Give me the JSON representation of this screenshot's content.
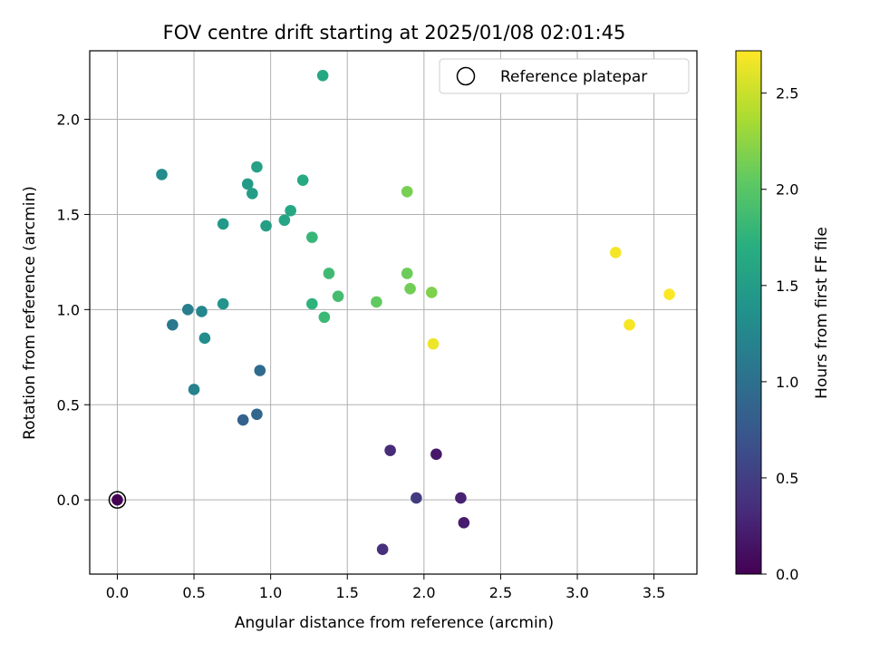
{
  "chart_data": {
    "type": "scatter",
    "title": "FOV centre drift starting at 2025/01/08 02:01:45",
    "xlabel": "Angular distance from reference (arcmin)",
    "ylabel": "Rotation from reference (arcmin)",
    "xlim": [
      -0.18,
      3.78
    ],
    "ylim": [
      -0.39,
      2.36
    ],
    "xticks": [
      "0.0",
      "0.5",
      "1.0",
      "1.5",
      "2.0",
      "2.5",
      "3.0",
      "3.5"
    ],
    "yticks": [
      "0.0",
      "0.5",
      "1.0",
      "1.5",
      "2.0"
    ],
    "grid": true,
    "legend": {
      "position": "top-right",
      "entries": [
        "Reference platepar"
      ]
    },
    "reference_point": {
      "x": 0.0,
      "y": 0.0
    },
    "colorbar": {
      "label": "Hours from first FF file",
      "colormap": "viridis",
      "range": [
        0.0,
        2.72
      ],
      "ticks": [
        "0.0",
        "0.5",
        "1.0",
        "1.5",
        "2.0",
        "2.5"
      ]
    },
    "points": [
      {
        "x": 0.0,
        "y": 0.0,
        "c": 0.0
      },
      {
        "x": 2.08,
        "y": 0.24,
        "c": 0.18
      },
      {
        "x": 2.26,
        "y": -0.12,
        "c": 0.22
      },
      {
        "x": 2.24,
        "y": 0.01,
        "c": 0.26
      },
      {
        "x": 1.78,
        "y": 0.26,
        "c": 0.33
      },
      {
        "x": 1.73,
        "y": -0.26,
        "c": 0.37
      },
      {
        "x": 1.95,
        "y": 0.01,
        "c": 0.47
      },
      {
        "x": 0.82,
        "y": 0.42,
        "c": 0.85
      },
      {
        "x": 0.91,
        "y": 0.45,
        "c": 0.9
      },
      {
        "x": 0.93,
        "y": 0.68,
        "c": 0.95
      },
      {
        "x": 0.36,
        "y": 0.92,
        "c": 1.1
      },
      {
        "x": 0.46,
        "y": 1.0,
        "c": 1.15
      },
      {
        "x": 0.5,
        "y": 0.58,
        "c": 1.2
      },
      {
        "x": 0.55,
        "y": 0.99,
        "c": 1.25
      },
      {
        "x": 0.57,
        "y": 0.85,
        "c": 1.3
      },
      {
        "x": 0.29,
        "y": 1.71,
        "c": 1.3
      },
      {
        "x": 0.69,
        "y": 1.03,
        "c": 1.4
      },
      {
        "x": 0.69,
        "y": 1.45,
        "c": 1.45
      },
      {
        "x": 0.85,
        "y": 1.66,
        "c": 1.48
      },
      {
        "x": 0.88,
        "y": 1.61,
        "c": 1.5
      },
      {
        "x": 0.97,
        "y": 1.44,
        "c": 1.52
      },
      {
        "x": 0.91,
        "y": 1.75,
        "c": 1.55
      },
      {
        "x": 1.09,
        "y": 1.47,
        "c": 1.6
      },
      {
        "x": 1.13,
        "y": 1.52,
        "c": 1.62
      },
      {
        "x": 1.21,
        "y": 1.68,
        "c": 1.65
      },
      {
        "x": 1.34,
        "y": 2.23,
        "c": 1.62
      },
      {
        "x": 1.27,
        "y": 1.03,
        "c": 1.75
      },
      {
        "x": 1.27,
        "y": 1.38,
        "c": 1.8
      },
      {
        "x": 1.35,
        "y": 0.96,
        "c": 1.82
      },
      {
        "x": 1.38,
        "y": 1.19,
        "c": 1.85
      },
      {
        "x": 1.44,
        "y": 1.07,
        "c": 1.88
      },
      {
        "x": 1.69,
        "y": 1.04,
        "c": 2.05
      },
      {
        "x": 1.89,
        "y": 1.19,
        "c": 2.1
      },
      {
        "x": 1.91,
        "y": 1.11,
        "c": 2.12
      },
      {
        "x": 2.05,
        "y": 1.09,
        "c": 2.18
      },
      {
        "x": 1.89,
        "y": 1.62,
        "c": 2.15
      },
      {
        "x": 2.06,
        "y": 0.82,
        "c": 2.65
      },
      {
        "x": 3.25,
        "y": 1.3,
        "c": 2.68
      },
      {
        "x": 3.34,
        "y": 0.92,
        "c": 2.7
      },
      {
        "x": 3.6,
        "y": 1.08,
        "c": 2.72
      }
    ]
  }
}
